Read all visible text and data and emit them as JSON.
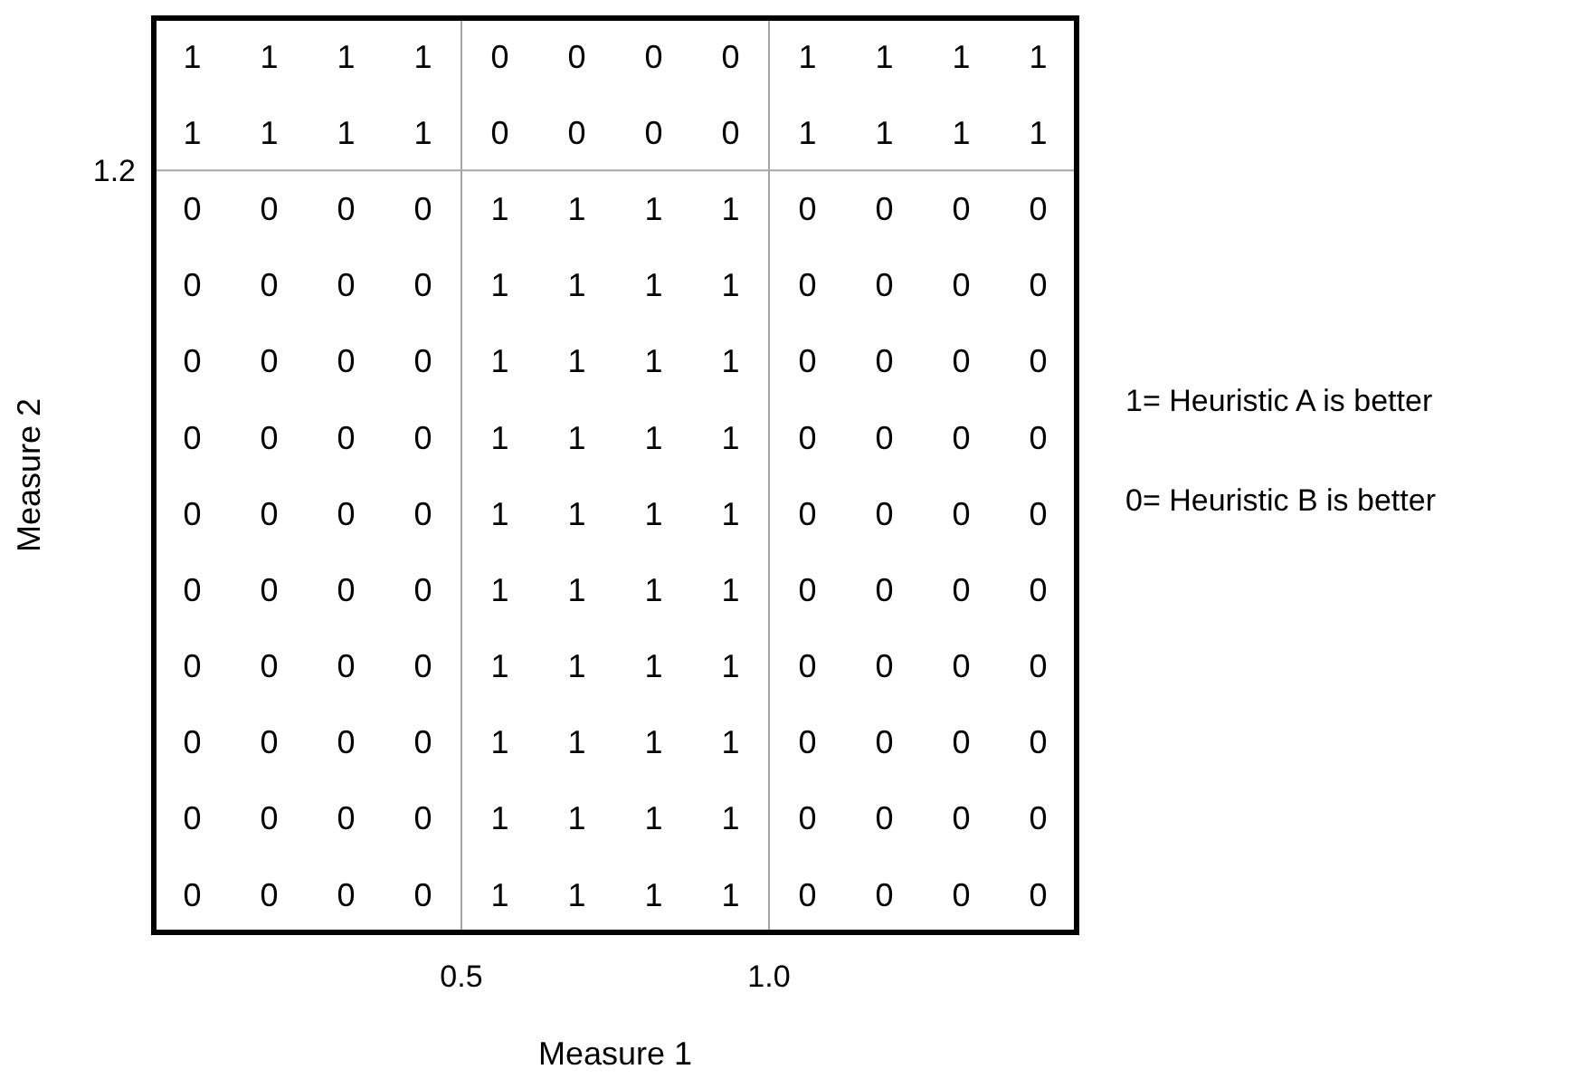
{
  "chart_data": {
    "type": "heatmap",
    "xlabel": "Measure 1",
    "ylabel": "Measure 2",
    "categories": [
      null,
      null,
      null,
      null,
      null,
      null,
      null,
      null,
      null,
      null,
      null,
      null
    ],
    "y_categories": [
      null,
      null,
      null,
      null,
      null,
      null,
      null,
      null,
      null,
      null,
      null,
      null
    ],
    "cells": [
      [
        1,
        1,
        1,
        1,
        0,
        0,
        0,
        0,
        1,
        1,
        1,
        1
      ],
      [
        1,
        1,
        1,
        1,
        0,
        0,
        0,
        0,
        1,
        1,
        1,
        1
      ],
      [
        0,
        0,
        0,
        0,
        1,
        1,
        1,
        1,
        0,
        0,
        0,
        0
      ],
      [
        0,
        0,
        0,
        0,
        1,
        1,
        1,
        1,
        0,
        0,
        0,
        0
      ],
      [
        0,
        0,
        0,
        0,
        1,
        1,
        1,
        1,
        0,
        0,
        0,
        0
      ],
      [
        0,
        0,
        0,
        0,
        1,
        1,
        1,
        1,
        0,
        0,
        0,
        0
      ],
      [
        0,
        0,
        0,
        0,
        1,
        1,
        1,
        1,
        0,
        0,
        0,
        0
      ],
      [
        0,
        0,
        0,
        0,
        1,
        1,
        1,
        1,
        0,
        0,
        0,
        0
      ],
      [
        0,
        0,
        0,
        0,
        1,
        1,
        1,
        1,
        0,
        0,
        0,
        0
      ],
      [
        0,
        0,
        0,
        0,
        1,
        1,
        1,
        1,
        0,
        0,
        0,
        0
      ],
      [
        0,
        0,
        0,
        0,
        1,
        1,
        1,
        1,
        0,
        0,
        0,
        0
      ],
      [
        0,
        0,
        0,
        0,
        1,
        1,
        1,
        1,
        0,
        0,
        0,
        0
      ]
    ],
    "data_labels": true,
    "annotations": [
      "0.5",
      "1.0",
      "1.2",
      "1= Heuristic A is better",
      "0= Heuristic B is better"
    ]
  }
}
